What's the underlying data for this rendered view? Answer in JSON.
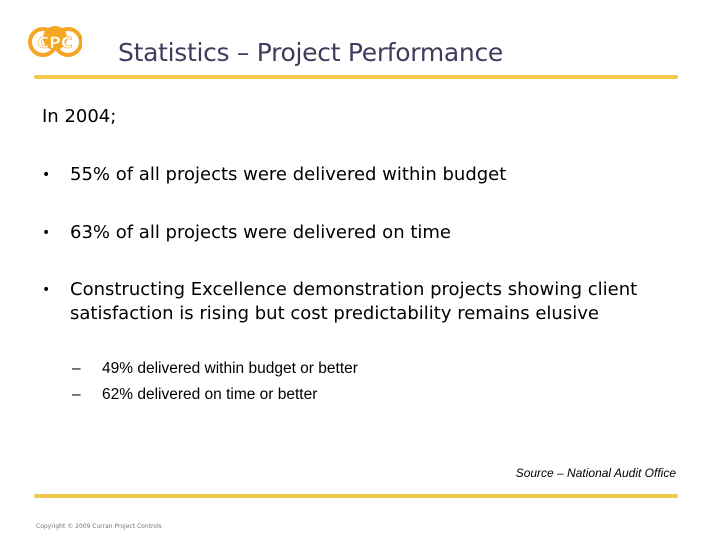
{
  "logo": {
    "text": "CPC",
    "color": "#f5a623"
  },
  "title": "Statistics – Project Performance",
  "intro": "In 2004;",
  "bullets": [
    {
      "marker": "•",
      "text": "55% of all projects were delivered within budget"
    },
    {
      "marker": "•",
      "text": "63% of all projects were delivered on time"
    },
    {
      "marker": "•",
      "text": "Constructing Excellence demonstration projects showing client satisfaction is rising but cost predictability remains elusive"
    }
  ],
  "subbullets": [
    {
      "marker": "–",
      "text": "49% delivered within budget or better"
    },
    {
      "marker": "–",
      "text": "62% delivered on time or better"
    }
  ],
  "source": "Source – National Audit Office",
  "copyright": "Copyright © 2009 Curran Project Controls",
  "colors": {
    "rule": "#f2c94c",
    "title": "#3d3d5c",
    "logo": "#f5a623"
  }
}
